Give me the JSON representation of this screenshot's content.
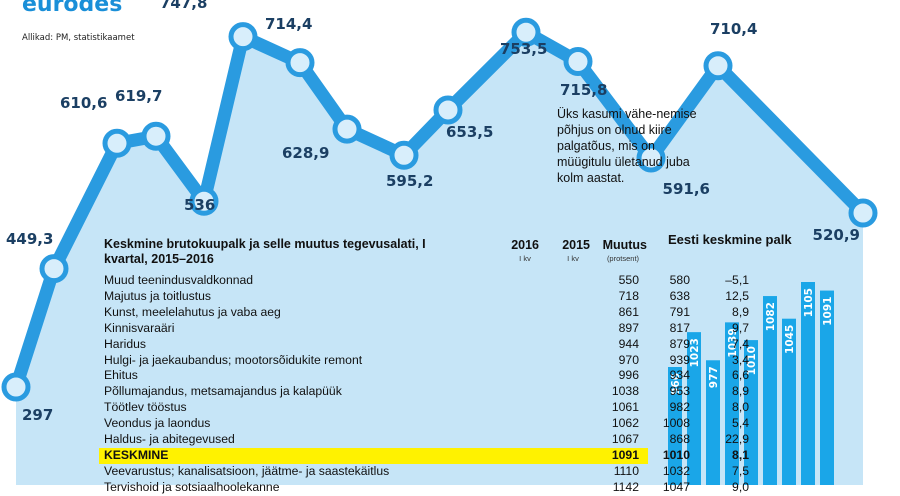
{
  "title": "eurodes",
  "source": "Allikad: PM, statistikaamet",
  "note": "Üks kasumi vähe-nemise põhjus on olnud kiire palgatõus, mis on müügitulu ületanud juba kolm aastat.",
  "colors": {
    "line": "#2a9be0",
    "area": "#c6e5f7",
    "marker_fill": "#d8eefb",
    "bar": "#1aa6e8",
    "highlight": "#fff200"
  },
  "chart_data": [
    {
      "type": "line",
      "title": "",
      "values": [
        297,
        449.3,
        610.6,
        619.7,
        536,
        747.8,
        714.4,
        628.9,
        595.2,
        653.5,
        753.5,
        715.8,
        591.6,
        710.4,
        520.9
      ],
      "labels": [
        "297",
        "449,3",
        "610,6",
        "619,7",
        "536",
        "747,8",
        "714,4",
        "628,9",
        "595,2",
        "653,5",
        "753,5",
        "715,8",
        "591,6",
        "710,4",
        "520,9"
      ]
    },
    {
      "type": "table",
      "title": "Keskmine brutokuupalk ja selle muutus tegevusalati, I kvartal, 2015–2016",
      "columns": [
        "2016",
        "2015",
        "Muutus"
      ],
      "subheaders": [
        "I kv",
        "I kv",
        "(protsent)"
      ],
      "rows": [
        [
          "Muud teenindusvaldkonnad",
          "550",
          "580",
          "–5,1"
        ],
        [
          "Majutus ja toitlustus",
          "718",
          "638",
          "12,5"
        ],
        [
          "Kunst, meelelahutus ja vaba aeg",
          "861",
          "791",
          "8,9"
        ],
        [
          "Kinnisvaraäri",
          "897",
          "817",
          "9,7"
        ],
        [
          "Haridus",
          "944",
          "879",
          "7,4"
        ],
        [
          "Hulgi- ja jaekaubandus; mootorsõidukite remont",
          "970",
          "939",
          "3,4"
        ],
        [
          "Ehitus",
          "996",
          "934",
          "6,6"
        ],
        [
          "Põllumajandus, metsamajandus ja kalapüük",
          "1038",
          "953",
          "8,9"
        ],
        [
          "Töötlev tööstus",
          "1061",
          "982",
          "8,0"
        ],
        [
          "Veondus ja laondus",
          "1062",
          "1008",
          "5,4"
        ],
        [
          "Haldus- ja abitegevused",
          "1067",
          "868",
          "22,9"
        ],
        [
          "KESKMINE",
          "1091",
          "1010",
          "8,1"
        ],
        [
          "Veevarustus; kanalisatsioon, jäätme- ja saastekäitlus",
          "1110",
          "1032",
          "7,5"
        ],
        [
          "Tervishoid ja sotsiaalhoolekanne",
          "1142",
          "1047",
          "9,0"
        ]
      ],
      "highlight_row": 11
    },
    {
      "type": "bar",
      "title": "Eesti keskmine palk",
      "values": [
        966,
        1023,
        977,
        1039,
        1010,
        1082,
        1045,
        1105,
        1091
      ]
    }
  ]
}
